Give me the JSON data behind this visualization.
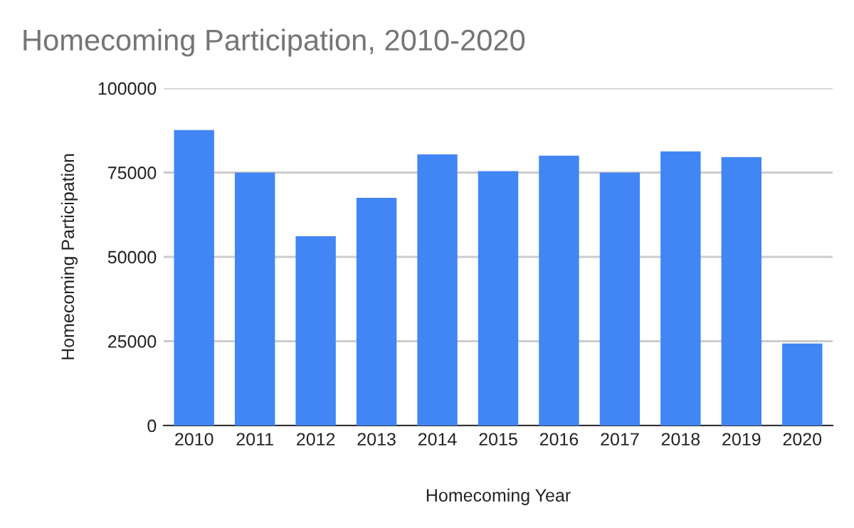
{
  "chart_data": {
    "type": "bar",
    "title": "Homecoming Participation, 2010-2020",
    "xlabel": "Homecoming Year",
    "ylabel": "Homecoming Participation",
    "categories": [
      "2010",
      "2011",
      "2012",
      "2013",
      "2014",
      "2015",
      "2016",
      "2017",
      "2018",
      "2019",
      "2020"
    ],
    "values": [
      87600,
      75000,
      56100,
      67500,
      80400,
      75400,
      80000,
      75000,
      81300,
      79600,
      24300
    ],
    "color": "#4285f4",
    "ylim": [
      0,
      100000
    ],
    "yticks": [
      0,
      25000,
      50000,
      75000,
      100000
    ],
    "grid": "y",
    "legend": false
  }
}
